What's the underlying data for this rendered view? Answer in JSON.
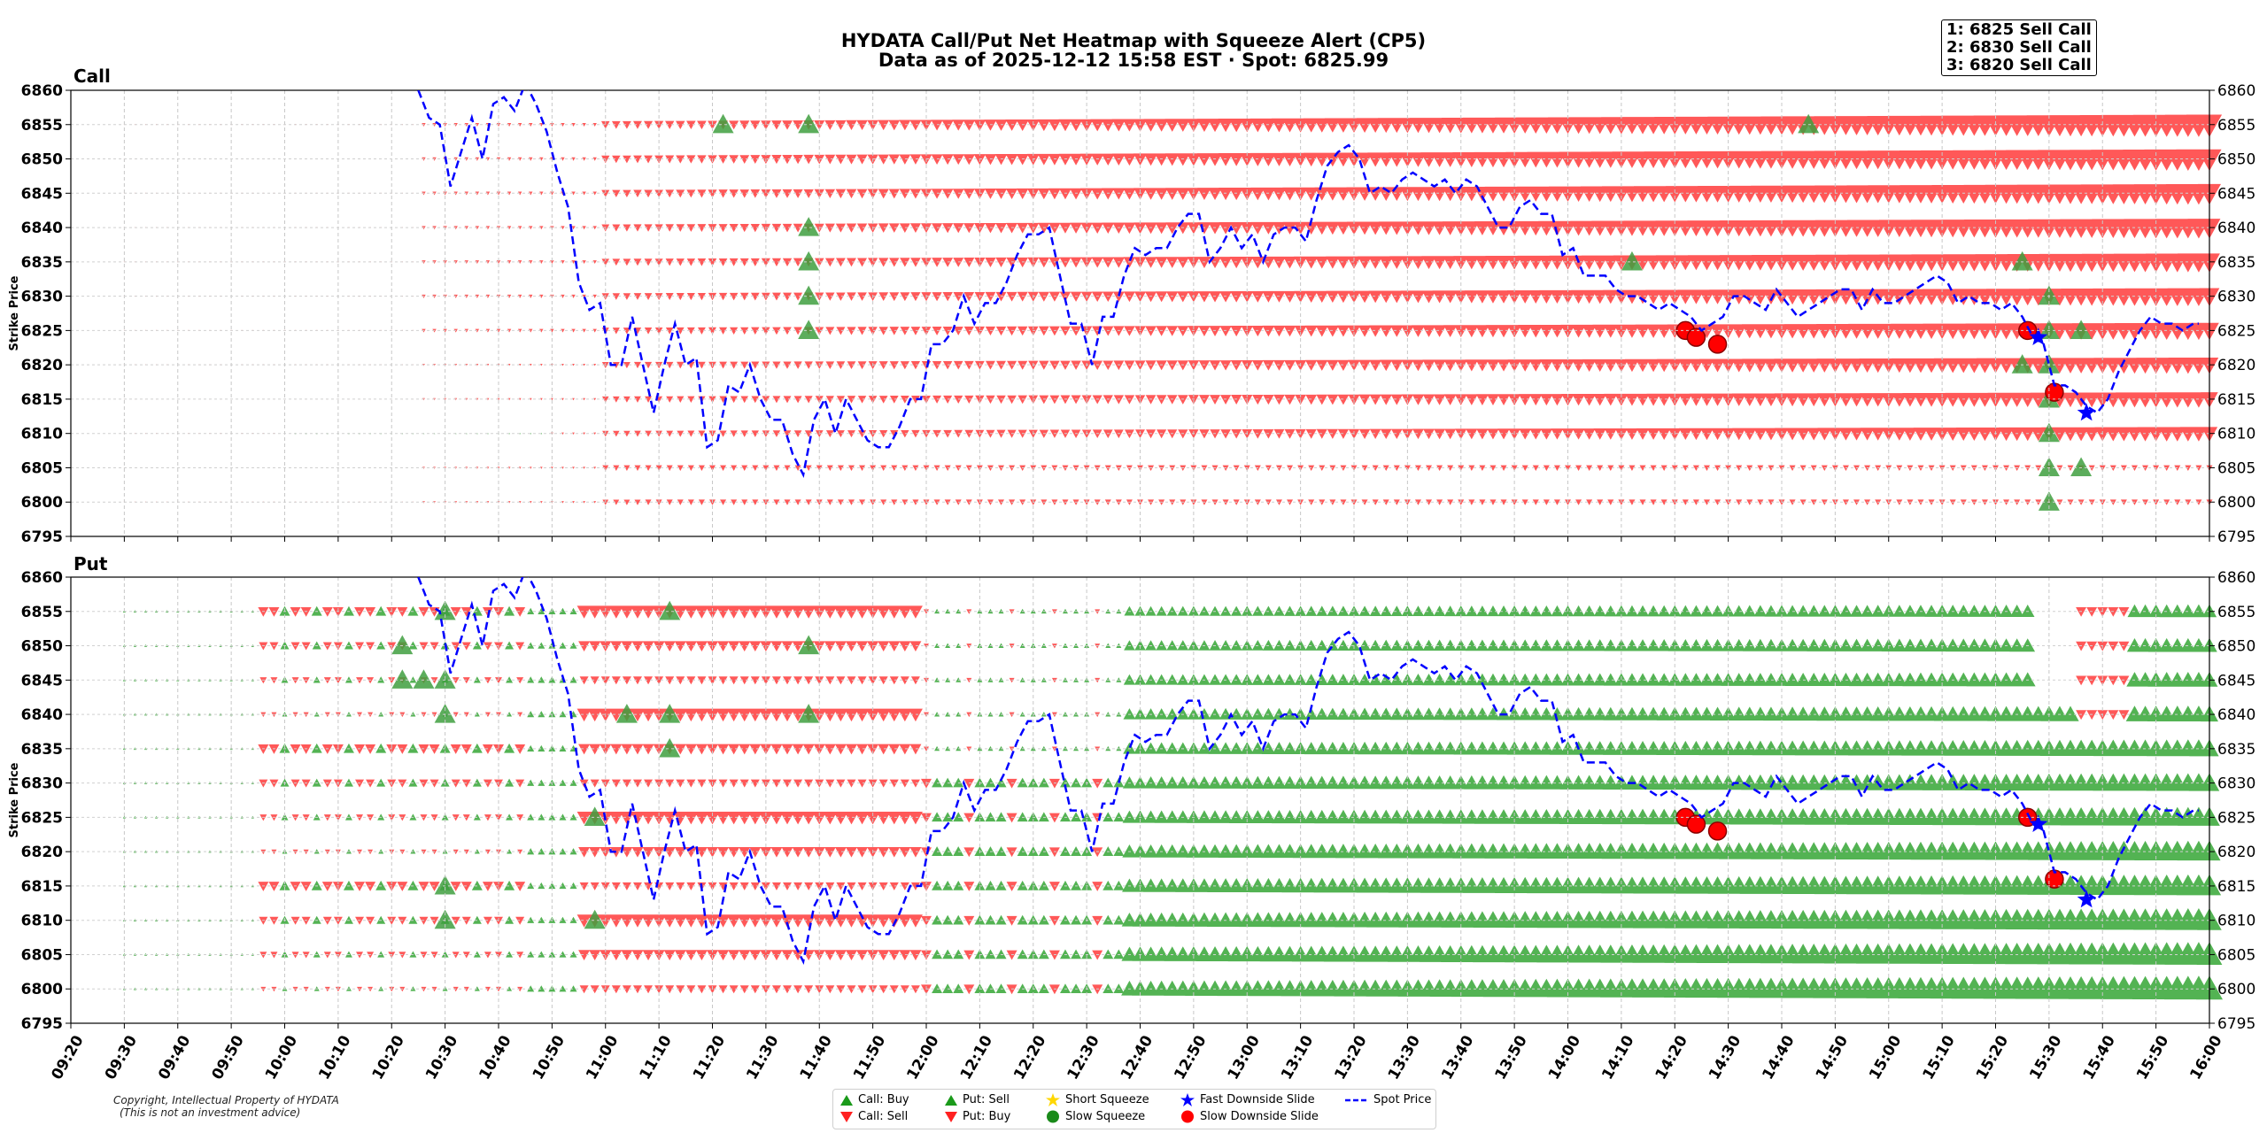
{
  "title_line1": "HYDATA Call/Put Net Heatmap with Squeeze Alert (CP5)",
  "title_line2": "Data as of 2025-12-12 15:58 EST · Spot: 6825.99",
  "alerts": [
    "1: 6825 Sell Call",
    "2: 6830 Sell Call",
    "3: 6820 Sell Call"
  ],
  "copyright_line1": "Copyright, Intellectual Property of HYDATA",
  "copyright_line2": "(This is not an investment advice)",
  "legend": {
    "call_buy": "Call: Buy",
    "call_sell": "Call: Sell",
    "put_sell": "Put: Sell",
    "put_buy": "Put: Buy",
    "short_squeeze": "Short Squeeze",
    "slow_squeeze": "Slow Squeeze",
    "fast_slide": "Fast Downside Slide",
    "slow_slide": "Slow Downside Slide",
    "spot": "Spot Price"
  },
  "colors": {
    "call_sell_red": "#ff2020",
    "buy_green": "#1a9a1a",
    "spot_blue": "#0000ff",
    "squeeze_gold": "#ffd700",
    "alert_red": "#ff0000"
  },
  "chart_data": {
    "type": "scatter",
    "ylabel": "Strike Price",
    "ylim": [
      6795,
      6860
    ],
    "strikes": [
      6800,
      6805,
      6810,
      6815,
      6820,
      6825,
      6830,
      6835,
      6840,
      6845,
      6850,
      6855
    ],
    "time_range": [
      "09:20",
      "16:00"
    ],
    "x_ticks": [
      "09:20",
      "09:30",
      "09:40",
      "09:50",
      "10:00",
      "10:10",
      "10:20",
      "10:30",
      "10:40",
      "10:50",
      "11:00",
      "11:10",
      "11:20",
      "11:30",
      "11:40",
      "11:50",
      "12:00",
      "12:10",
      "12:20",
      "12:30",
      "12:40",
      "12:50",
      "13:00",
      "13:10",
      "13:20",
      "13:30",
      "13:40",
      "13:50",
      "14:00",
      "14:10",
      "14:20",
      "14:30",
      "14:40",
      "14:50",
      "15:00",
      "15:10",
      "15:20",
      "15:30",
      "15:40",
      "15:50",
      "16:00"
    ],
    "y_ticks": [
      "6795",
      "6800",
      "6805",
      "6810",
      "6815",
      "6820",
      "6825",
      "6830",
      "6835",
      "6840",
      "6845",
      "6850",
      "6855",
      "6860"
    ],
    "panels": [
      {
        "name": "Call",
        "buy_markers": [
          [
            "11:22",
            6855
          ],
          [
            "11:38",
            6855
          ],
          [
            "11:38",
            6840
          ],
          [
            "11:38",
            6835
          ],
          [
            "11:38",
            6830
          ],
          [
            "11:38",
            6825
          ],
          [
            "14:12",
            6835
          ],
          [
            "14:45",
            6855
          ],
          [
            "15:25",
            6835
          ],
          [
            "15:30",
            6830
          ],
          [
            "15:30",
            6825
          ],
          [
            "15:36",
            6825
          ],
          [
            "15:30",
            6820
          ],
          [
            "15:25",
            6820
          ],
          [
            "15:30",
            6815
          ],
          [
            "15:30",
            6810
          ],
          [
            "15:30",
            6805
          ],
          [
            "15:36",
            6805
          ],
          [
            "15:30",
            6800
          ]
        ],
        "slide_markers": [
          [
            "14:22",
            6825
          ],
          [
            "14:24",
            6824
          ],
          [
            "14:28",
            6823
          ],
          [
            "15:26",
            6825
          ],
          [
            "15:31",
            6816
          ]
        ],
        "fast_slide_markers": [
          [
            "15:28",
            6824
          ],
          [
            "15:37",
            6813
          ]
        ]
      },
      {
        "name": "Put",
        "buy_markers": [
          [
            "10:22",
            6850
          ],
          [
            "10:22",
            6845
          ],
          [
            "10:26",
            6845
          ],
          [
            "10:30",
            6845
          ],
          [
            "10:30",
            6855
          ],
          [
            "10:30",
            6840
          ],
          [
            "10:30",
            6815
          ],
          [
            "10:30",
            6810
          ],
          [
            "10:58",
            6825
          ],
          [
            "10:58",
            6810
          ],
          [
            "11:04",
            6840
          ],
          [
            "11:12",
            6855
          ],
          [
            "11:12",
            6840
          ],
          [
            "11:12",
            6835
          ],
          [
            "11:38",
            6850
          ],
          [
            "11:38",
            6840
          ]
        ],
        "slide_markers": [
          [
            "14:22",
            6825
          ],
          [
            "14:24",
            6824
          ],
          [
            "14:28",
            6823
          ],
          [
            "15:26",
            6825
          ],
          [
            "15:31",
            6816
          ]
        ],
        "fast_slide_markers": [
          [
            "15:28",
            6824
          ],
          [
            "15:37",
            6813
          ]
        ]
      }
    ],
    "spot_series": {
      "time": [
        "10:25",
        "10:27",
        "10:29",
        "10:31",
        "10:33",
        "10:35",
        "10:37",
        "10:39",
        "10:41",
        "10:43",
        "10:45",
        "10:47",
        "10:49",
        "10:51",
        "10:53",
        "10:55",
        "10:57",
        "10:59",
        "11:01",
        "11:03",
        "11:05",
        "11:07",
        "11:09",
        "11:11",
        "11:13",
        "11:15",
        "11:17",
        "11:19",
        "11:21",
        "11:23",
        "11:25",
        "11:27",
        "11:29",
        "11:31",
        "11:33",
        "11:35",
        "11:37",
        "11:39",
        "11:41",
        "11:43",
        "11:45",
        "11:47",
        "11:49",
        "11:51",
        "11:53",
        "11:55",
        "11:57",
        "11:59",
        "12:01",
        "12:03",
        "12:05",
        "12:07",
        "12:09",
        "12:11",
        "12:13",
        "12:15",
        "12:17",
        "12:19",
        "12:21",
        "12:23",
        "12:25",
        "12:27",
        "12:29",
        "12:31",
        "12:33",
        "12:35",
        "12:37",
        "12:39",
        "12:41",
        "12:43",
        "12:45",
        "12:47",
        "12:49",
        "12:51",
        "12:53",
        "12:55",
        "12:57",
        "12:59",
        "13:01",
        "13:03",
        "13:05",
        "13:07",
        "13:09",
        "13:11",
        "13:13",
        "13:15",
        "13:17",
        "13:19",
        "13:21",
        "13:23",
        "13:25",
        "13:27",
        "13:29",
        "13:31",
        "13:33",
        "13:35",
        "13:37",
        "13:39",
        "13:41",
        "13:43",
        "13:45",
        "13:47",
        "13:49",
        "13:51",
        "13:53",
        "13:55",
        "13:57",
        "13:59",
        "14:01",
        "14:03",
        "14:05",
        "14:07",
        "14:09",
        "14:11",
        "14:13",
        "14:15",
        "14:17",
        "14:19",
        "14:21",
        "14:23",
        "14:25",
        "14:27",
        "14:29",
        "14:31",
        "14:33",
        "14:35",
        "14:37",
        "14:39",
        "14:41",
        "14:43",
        "14:45",
        "14:47",
        "14:49",
        "14:51",
        "14:53",
        "14:55",
        "14:57",
        "14:59",
        "15:01",
        "15:03",
        "15:05",
        "15:07",
        "15:09",
        "15:11",
        "15:13",
        "15:15",
        "15:17",
        "15:19",
        "15:21",
        "15:23",
        "15:25",
        "15:27",
        "15:29",
        "15:31",
        "15:33",
        "15:35",
        "15:37",
        "15:39",
        "15:41",
        "15:43",
        "15:45",
        "15:47",
        "15:49",
        "15:51",
        "15:53",
        "15:55",
        "15:57",
        "15:58"
      ],
      "price": [
        6860,
        6856,
        6855,
        6846,
        6851,
        6856,
        6850,
        6858,
        6859,
        6857,
        6861,
        6858,
        6854,
        6848,
        6843,
        6832,
        6828,
        6829,
        6820,
        6820,
        6827,
        6820,
        6813,
        6820,
        6826,
        6820,
        6821,
        6808,
        6809,
        6817,
        6816,
        6820,
        6815,
        6812,
        6812,
        6807,
        6804,
        6812,
        6815,
        6810,
        6815,
        6812,
        6809,
        6808,
        6808,
        6811,
        6815,
        6815,
        6823,
        6823,
        6825,
        6830,
        6826,
        6829,
        6829,
        6832,
        6836,
        6839,
        6839,
        6840,
        6833,
        6826,
        6826,
        6820,
        6827,
        6827,
        6833,
        6837,
        6836,
        6837,
        6837,
        6840,
        6842,
        6842,
        6835,
        6837,
        6840,
        6837,
        6839,
        6835,
        6839,
        6840,
        6840,
        6838,
        6844,
        6849,
        6851,
        6852,
        6850,
        6845,
        6846,
        6845,
        6847,
        6848,
        6847,
        6846,
        6847,
        6845,
        6847,
        6846,
        6843,
        6840,
        6840,
        6843,
        6844,
        6842,
        6842,
        6836,
        6837,
        6833,
        6833,
        6833,
        6831,
        6830,
        6830,
        6829,
        6828,
        6829,
        6828,
        6827,
        6825,
        6826,
        6827,
        6830,
        6830,
        6829,
        6828,
        6831,
        6829,
        6827,
        6828,
        6829,
        6830,
        6831,
        6831,
        6828,
        6831,
        6829,
        6829,
        6830,
        6831,
        6832,
        6833,
        6832,
        6829,
        6830,
        6829,
        6829,
        6828,
        6829,
        6827,
        6824,
        6823,
        6817,
        6817,
        6816,
        6814,
        6813,
        6815,
        6819,
        6822,
        6825,
        6827,
        6826,
        6826,
        6825,
        6826,
        6826
      ]
    }
  }
}
